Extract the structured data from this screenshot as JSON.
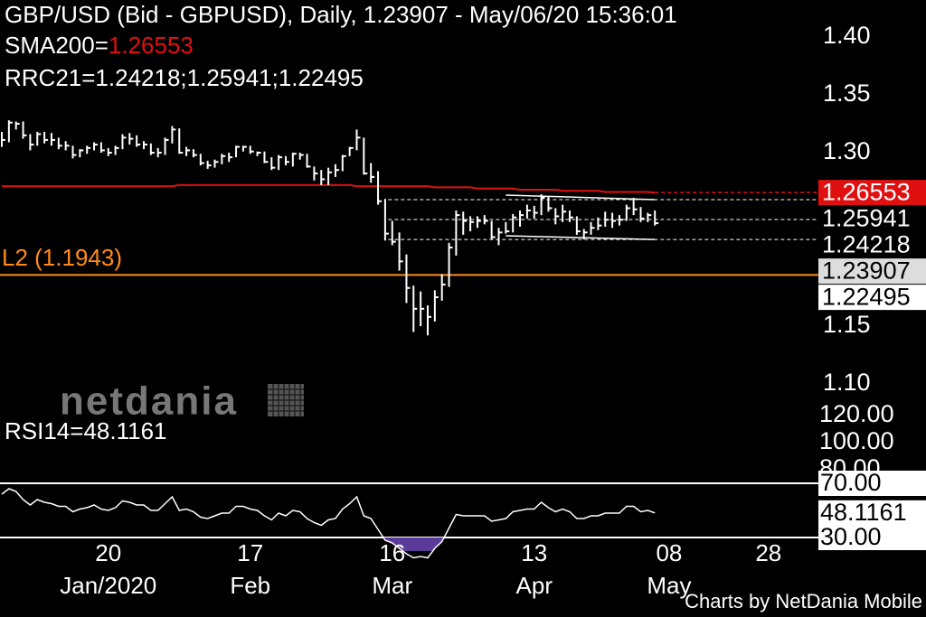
{
  "chart_data": {
    "type": "ohlc",
    "title": "GBP/USD (Bid - GBPUSD),  Daily, 1.23907 - May/06/20 15:36:01",
    "sma_label": "SMA200=",
    "sma_value": "1.26553",
    "rrc_label": "RRC21=1.24218;1.25941;1.22495",
    "x": [
      "2019-12-30",
      "2019-12-31",
      "2020-01-01",
      "2020-01-02",
      "2020-01-03",
      "2020-01-06",
      "2020-01-07",
      "2020-01-08",
      "2020-01-09",
      "2020-01-10",
      "2020-01-13",
      "2020-01-14",
      "2020-01-15",
      "2020-01-16",
      "2020-01-17",
      "2020-01-20",
      "2020-01-21",
      "2020-01-22",
      "2020-01-23",
      "2020-01-24",
      "2020-01-27",
      "2020-01-28",
      "2020-01-29",
      "2020-01-30",
      "2020-01-31",
      "2020-02-03",
      "2020-02-04",
      "2020-02-05",
      "2020-02-06",
      "2020-02-07",
      "2020-02-10",
      "2020-02-11",
      "2020-02-12",
      "2020-02-13",
      "2020-02-14",
      "2020-02-17",
      "2020-02-18",
      "2020-02-19",
      "2020-02-20",
      "2020-02-21",
      "2020-02-24",
      "2020-02-25",
      "2020-02-26",
      "2020-02-27",
      "2020-02-28",
      "2020-03-02",
      "2020-03-03",
      "2020-03-04",
      "2020-03-05",
      "2020-03-06",
      "2020-03-09",
      "2020-03-10",
      "2020-03-11",
      "2020-03-12",
      "2020-03-13",
      "2020-03-16",
      "2020-03-17",
      "2020-03-18",
      "2020-03-19",
      "2020-03-20",
      "2020-03-23",
      "2020-03-24",
      "2020-03-25",
      "2020-03-26",
      "2020-03-27",
      "2020-03-30",
      "2020-03-31",
      "2020-04-01",
      "2020-04-02",
      "2020-04-03",
      "2020-04-06",
      "2020-04-07",
      "2020-04-08",
      "2020-04-09",
      "2020-04-10",
      "2020-04-13",
      "2020-04-14",
      "2020-04-15",
      "2020-04-16",
      "2020-04-17",
      "2020-04-20",
      "2020-04-21",
      "2020-04-22",
      "2020-04-23",
      "2020-04-24",
      "2020-04-27",
      "2020-04-28",
      "2020-04-29",
      "2020-04-30",
      "2020-05-01",
      "2020-05-04",
      "2020-05-05",
      "2020-05-06"
    ],
    "high": [
      1.318,
      1.328,
      1.327,
      1.327,
      1.316,
      1.318,
      1.318,
      1.317,
      1.313,
      1.31,
      1.306,
      1.303,
      1.306,
      1.309,
      1.309,
      1.304,
      1.306,
      1.316,
      1.317,
      1.315,
      1.31,
      1.308,
      1.304,
      1.313,
      1.323,
      1.321,
      1.305,
      1.303,
      1.299,
      1.293,
      1.294,
      1.299,
      1.3,
      1.306,
      1.306,
      1.306,
      1.301,
      1.301,
      1.296,
      1.298,
      1.297,
      1.3,
      1.3,
      1.299,
      1.288,
      1.285,
      1.287,
      1.29,
      1.298,
      1.305,
      1.32,
      1.313,
      1.291,
      1.284,
      1.26,
      1.241,
      1.231,
      1.212,
      1.185,
      1.18,
      1.168,
      1.181,
      1.195,
      1.222,
      1.25,
      1.249,
      1.245,
      1.245,
      1.246,
      1.241,
      1.235,
      1.24,
      1.247,
      1.25,
      1.255,
      1.254,
      1.264,
      1.262,
      1.252,
      1.255,
      1.25,
      1.245,
      1.234,
      1.24,
      1.244,
      1.249,
      1.248,
      1.246,
      1.255,
      1.261,
      1.253,
      1.248,
      1.25
    ],
    "low": [
      1.305,
      1.309,
      1.32,
      1.312,
      1.302,
      1.306,
      1.308,
      1.306,
      1.303,
      1.302,
      1.295,
      1.296,
      1.299,
      1.302,
      1.3,
      1.297,
      1.298,
      1.303,
      1.307,
      1.305,
      1.303,
      1.298,
      1.296,
      1.298,
      1.308,
      1.299,
      1.297,
      1.296,
      1.289,
      1.286,
      1.287,
      1.29,
      1.292,
      1.296,
      1.301,
      1.299,
      1.297,
      1.291,
      1.285,
      1.285,
      1.289,
      1.288,
      1.294,
      1.287,
      1.276,
      1.272,
      1.272,
      1.279,
      1.284,
      1.297,
      1.302,
      1.281,
      1.274,
      1.255,
      1.224,
      1.22,
      1.198,
      1.17,
      1.145,
      1.15,
      1.142,
      1.154,
      1.172,
      1.184,
      1.211,
      1.229,
      1.232,
      1.235,
      1.238,
      1.225,
      1.22,
      1.23,
      1.231,
      1.236,
      1.243,
      1.243,
      1.246,
      1.249,
      1.238,
      1.24,
      1.24,
      1.229,
      1.225,
      1.229,
      1.233,
      1.236,
      1.235,
      1.237,
      1.241,
      1.246,
      1.24,
      1.24,
      1.237
    ],
    "close": [
      1.311,
      1.326,
      1.325,
      1.315,
      1.307,
      1.316,
      1.311,
      1.311,
      1.306,
      1.306,
      1.298,
      1.302,
      1.304,
      1.307,
      1.302,
      1.3,
      1.304,
      1.313,
      1.312,
      1.307,
      1.307,
      1.3,
      1.3,
      1.311,
      1.32,
      1.3,
      1.302,
      1.298,
      1.291,
      1.289,
      1.292,
      1.297,
      1.296,
      1.305,
      1.305,
      1.301,
      1.3,
      1.292,
      1.287,
      1.296,
      1.292,
      1.299,
      1.298,
      1.288,
      1.282,
      1.277,
      1.283,
      1.285,
      1.297,
      1.304,
      1.313,
      1.282,
      1.279,
      1.258,
      1.23,
      1.223,
      1.206,
      1.183,
      1.165,
      1.165,
      1.158,
      1.175,
      1.186,
      1.218,
      1.246,
      1.241,
      1.24,
      1.241,
      1.241,
      1.227,
      1.231,
      1.232,
      1.244,
      1.246,
      1.25,
      1.248,
      1.261,
      1.252,
      1.245,
      1.249,
      1.244,
      1.232,
      1.231,
      1.235,
      1.237,
      1.242,
      1.241,
      1.242,
      1.252,
      1.251,
      1.243,
      1.246,
      1.239
    ],
    "color": "#ffffff",
    "sma200": {
      "color": "#e01010",
      "values": [
        1.271,
        1.271,
        1.271,
        1.271,
        1.271,
        1.271,
        1.271,
        1.271,
        1.271,
        1.271,
        1.271,
        1.271,
        1.271,
        1.271,
        1.271,
        1.271,
        1.271,
        1.271,
        1.271,
        1.271,
        1.271,
        1.271,
        1.271,
        1.271,
        1.271,
        1.272,
        1.272,
        1.272,
        1.272,
        1.272,
        1.272,
        1.272,
        1.272,
        1.272,
        1.272,
        1.272,
        1.272,
        1.272,
        1.272,
        1.272,
        1.272,
        1.272,
        1.272,
        1.272,
        1.272,
        1.272,
        1.272,
        1.272,
        1.272,
        1.272,
        1.271,
        1.271,
        1.271,
        1.271,
        1.271,
        1.271,
        1.271,
        1.271,
        1.271,
        1.271,
        1.271,
        1.27,
        1.27,
        1.27,
        1.27,
        1.27,
        1.27,
        1.269,
        1.269,
        1.269,
        1.269,
        1.269,
        1.269,
        1.268,
        1.268,
        1.268,
        1.268,
        1.268,
        1.268,
        1.267,
        1.267,
        1.267,
        1.267,
        1.267,
        1.267,
        1.266,
        1.266,
        1.266,
        1.266,
        1.266,
        1.266,
        1.266,
        1.26553
      ]
    },
    "channel": {
      "color": "#ffffff",
      "x": [
        "2020-04-07",
        "2020-05-06"
      ],
      "upper": [
        1.2633,
        1.25941
      ],
      "middle": [
        1.2457,
        1.24218
      ],
      "lower": [
        1.2281,
        1.22495
      ]
    },
    "level": {
      "label": "L2 (1.1943)",
      "value": 1.1943,
      "color": "#ff8c1a"
    },
    "ylim": [
      1.0727,
      1.432
    ],
    "yticks": [
      {
        "value": 1.4,
        "label": "1.40"
      },
      {
        "value": 1.35,
        "label": "1.35"
      },
      {
        "value": 1.3,
        "label": "1.30"
      },
      {
        "value": 1.15,
        "label": "1.15"
      },
      {
        "value": 1.1,
        "label": "1.10"
      }
    ],
    "price_labels": [
      {
        "value": 1.26553,
        "label": "1.26553",
        "bg": "#e01010",
        "fg": "#ffffff"
      },
      {
        "value": 1.25941,
        "label": "1.25941",
        "bg": "#000000",
        "fg": "#ffffff"
      },
      {
        "value": 1.24218,
        "label": "1.24218",
        "bg": "#000000",
        "fg": "#ffffff"
      },
      {
        "value": 1.23907,
        "label": "1.23907",
        "bg": "#dddddd",
        "fg": "#000000"
      },
      {
        "value": 1.22495,
        "label": "1.22495",
        "bg": "#ffffff",
        "fg": "#000000"
      }
    ],
    "xticks": [
      {
        "value": "2020-01-20",
        "label": "20"
      },
      {
        "value": "2020-02-17",
        "label": "17"
      },
      {
        "value": "2020-03-16",
        "label": "16"
      },
      {
        "value": "2020-04-13",
        "label": "13"
      },
      {
        "value": "2020-05-08",
        "label": "08"
      },
      {
        "value": "2020-05-28",
        "label": "28"
      }
    ],
    "xmonths": [
      {
        "value": "2020-01-20",
        "label": "Jan/2020"
      },
      {
        "value": "2020-02-17",
        "label": "Feb"
      },
      {
        "value": "2020-03-16",
        "label": "Mar"
      },
      {
        "value": "2020-04-13",
        "label": "Apr"
      },
      {
        "value": "2020-05-08",
        "label": "May"
      }
    ],
    "rsi": {
      "label": "RSI14=48.1161",
      "color": "#ffffff",
      "fill": "#5a3a9a",
      "values": [
        62,
        66,
        64,
        58,
        54,
        58,
        56,
        55,
        53,
        53,
        49,
        51,
        52,
        54,
        51,
        50,
        52,
        57,
        56,
        54,
        54,
        50,
        50,
        55,
        60,
        50,
        51,
        49,
        45,
        44,
        46,
        48,
        48,
        53,
        53,
        51,
        50,
        46,
        43,
        48,
        46,
        50,
        49,
        44,
        41,
        39,
        43,
        44,
        51,
        55,
        60,
        46,
        44,
        36,
        28,
        26,
        22,
        18,
        15,
        16,
        15,
        22,
        27,
        37,
        47,
        46,
        46,
        46,
        46,
        42,
        43,
        44,
        49,
        50,
        51,
        51,
        56,
        52,
        49,
        51,
        49,
        44,
        44,
        46,
        46,
        48,
        48,
        48,
        53,
        53,
        49,
        50,
        48.1161
      ],
      "ylim": [
        20,
        120
      ],
      "yticks": [
        {
          "value": 120,
          "label": "120.00"
        },
        {
          "value": 100,
          "label": "100.00"
        },
        {
          "value": 80,
          "label": "80.00"
        }
      ],
      "levels": [
        {
          "value": 70,
          "label": "70.00"
        },
        {
          "value": 30,
          "label": "30.00"
        }
      ],
      "last": {
        "value": 48.1161,
        "label": "48.1161"
      }
    },
    "watermark": "netdania",
    "credit": "Charts by NetDania Mobile"
  }
}
